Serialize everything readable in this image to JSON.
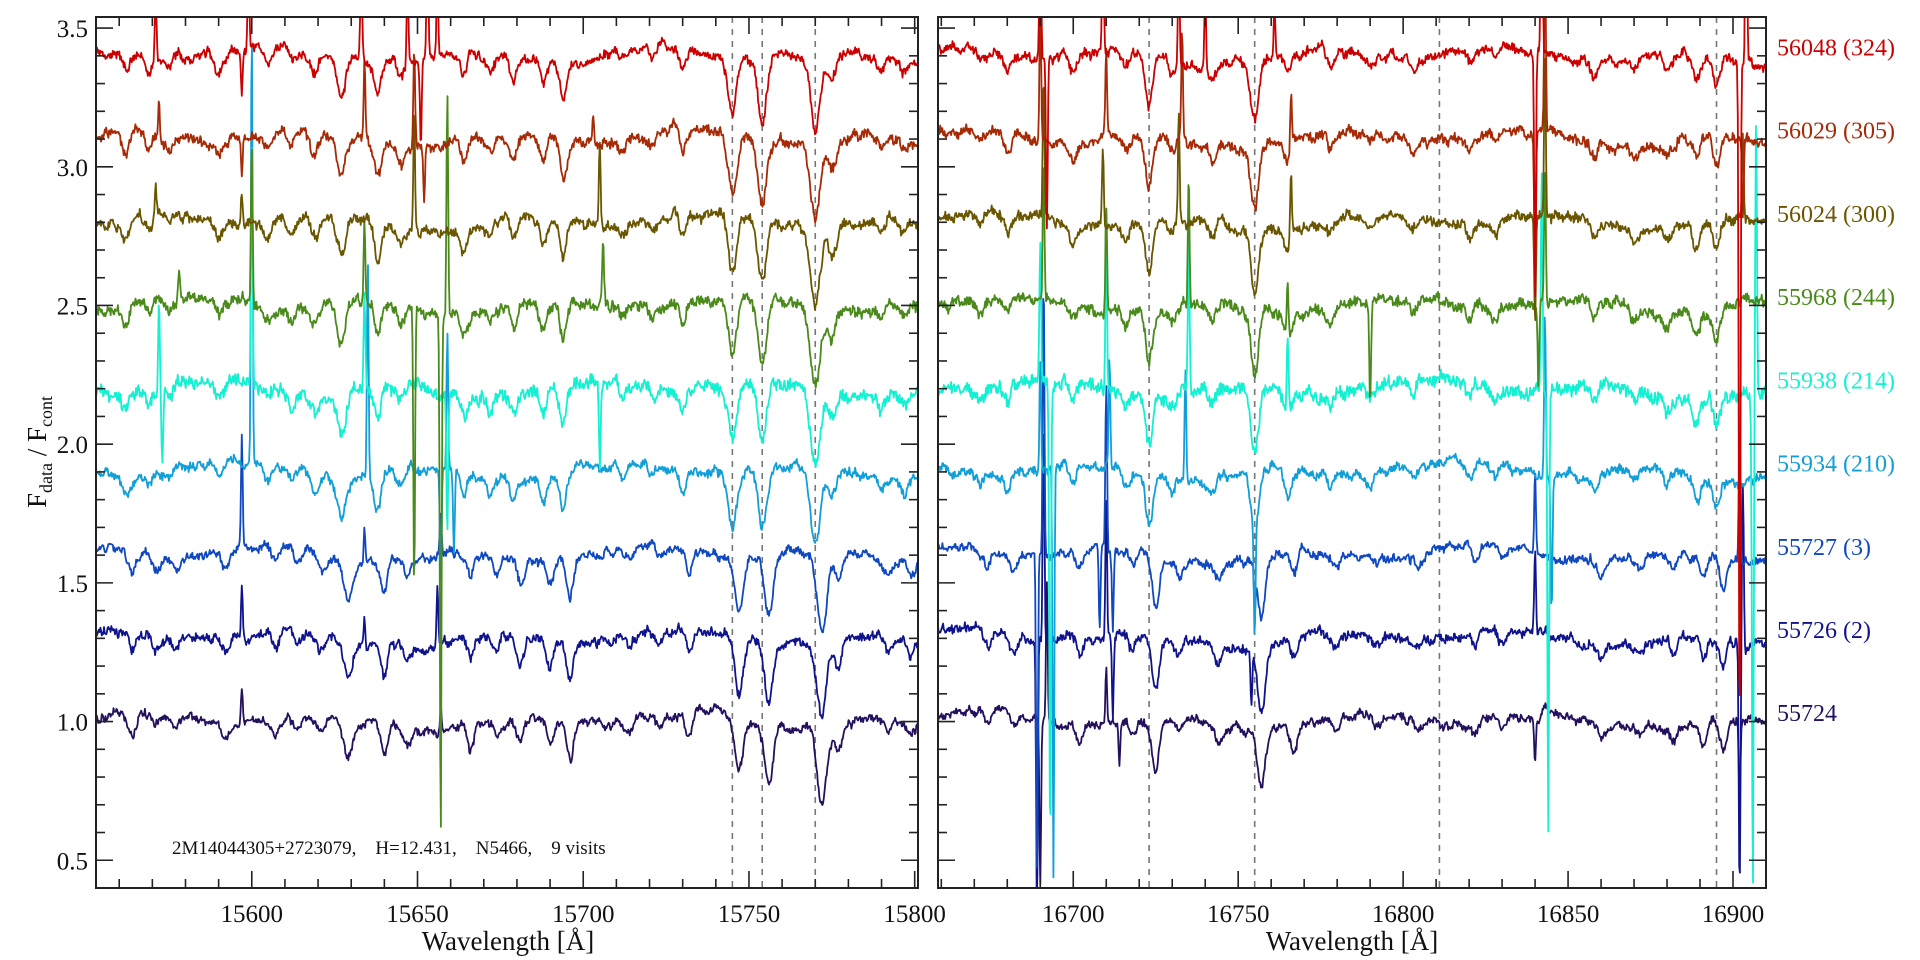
{
  "chart_data": [
    {
      "panel": "left",
      "type": "line",
      "xlim": [
        15553,
        15801
      ],
      "ylim": [
        0.4,
        3.54
      ],
      "xticks": [
        15600,
        15650,
        15700,
        15750,
        15800
      ],
      "yticks": [
        0.5,
        1.0,
        1.5,
        2.0,
        2.5,
        3.0,
        3.5
      ],
      "xlabel": "Wavelength [Å]",
      "ylabel": {
        "f1": "F",
        "sub1": "data",
        "sep": " / ",
        "f2": "F",
        "sub2": "cont"
      },
      "annotation": "2M14044305+2723079,    H=12.431,    N5466,    9 visits",
      "reference_lines": [
        15745,
        15754,
        15770
      ],
      "absorption_lines": [
        [
          15562,
          0.07,
          1.2
        ],
        [
          15569,
          0.05,
          1.0
        ],
        [
          15575,
          0.04,
          1.0
        ],
        [
          15590,
          0.06,
          1.2
        ],
        [
          15605,
          0.05,
          1.0
        ],
        [
          15612,
          0.05,
          1.0
        ],
        [
          15619,
          0.07,
          1.2
        ],
        [
          15627,
          0.14,
          1.3
        ],
        [
          15638,
          0.12,
          1.0
        ],
        [
          15645,
          0.06,
          1.0
        ],
        [
          15664,
          0.08,
          0.9
        ],
        [
          15672,
          0.05,
          0.9
        ],
        [
          15679,
          0.08,
          1.0
        ],
        [
          15688,
          0.09,
          1.0
        ],
        [
          15694,
          0.13,
          1.0
        ],
        [
          15712,
          0.04,
          1.0
        ],
        [
          15721,
          0.04,
          1.0
        ],
        [
          15730,
          0.08,
          0.9
        ],
        [
          15745,
          0.2,
          1.3
        ],
        [
          15754,
          0.22,
          1.3
        ],
        [
          15770,
          0.28,
          1.5
        ],
        [
          15775,
          0.1,
          1.2
        ],
        [
          15790,
          0.05,
          1.0
        ],
        [
          15797,
          0.04,
          1.0
        ]
      ],
      "spikes": {
        "56048": [
          [
            15571,
            0.25
          ],
          [
            15597,
            -0.15
          ],
          [
            15599,
            0.3
          ],
          [
            15633,
            0.4
          ],
          [
            15647,
            0.3
          ],
          [
            15651,
            -0.3
          ],
          [
            15653,
            0.5
          ],
          [
            15656,
            0.3
          ]
        ],
        "56029": [
          [
            15572,
            0.12
          ],
          [
            15597,
            -0.12
          ],
          [
            15634,
            0.3
          ],
          [
            15649,
            0.35
          ],
          [
            15652,
            -0.2
          ],
          [
            15703,
            0.1
          ]
        ],
        "56024": [
          [
            15571,
            0.12
          ],
          [
            15597,
            0.12
          ],
          [
            15649,
            0.42
          ],
          [
            15705,
            0.3
          ]
        ],
        "55968": [
          [
            15578,
            0.1
          ],
          [
            15600,
            0.6
          ],
          [
            15634,
            0.3
          ],
          [
            15649,
            -1.0
          ],
          [
            15657,
            -1.9
          ],
          [
            15659,
            0.8
          ],
          [
            15706,
            0.24
          ]
        ],
        "55938": [
          [
            15572,
            0.3
          ],
          [
            15573,
            -0.25
          ],
          [
            15600,
            0.9
          ],
          [
            15634,
            0.35
          ],
          [
            15659,
            -0.5
          ],
          [
            15705,
            -0.3
          ]
        ],
        "55934": [
          [
            15600,
            1.6
          ],
          [
            15635,
            0.8
          ],
          [
            15657,
            -0.4
          ],
          [
            15659,
            0.5
          ],
          [
            15661,
            -0.3
          ]
        ],
        "55727": [
          [
            15597,
            0.4
          ],
          [
            15634,
            0.12
          ],
          [
            15657,
            0.15
          ]
        ],
        "55726": [
          [
            15597,
            0.2
          ],
          [
            15634,
            0.1
          ],
          [
            15656,
            0.2
          ]
        ],
        "55724": [
          [
            15597,
            0.12
          ],
          [
            15657,
            0.1
          ]
        ]
      }
    },
    {
      "panel": "right",
      "type": "line",
      "xlim": [
        16659,
        16910
      ],
      "ylim": [
        0.4,
        3.54
      ],
      "xticks": [
        16700,
        16750,
        16800,
        16850,
        16900
      ],
      "yticks": [
        0.5,
        1.0,
        1.5,
        2.0,
        2.5,
        3.0,
        3.5
      ],
      "xlabel": "Wavelength [Å]",
      "reference_lines": [
        16723,
        16755,
        16811,
        16895
      ],
      "absorption_lines": [
        [
          16672,
          0.05,
          1.0
        ],
        [
          16680,
          0.06,
          1.0
        ],
        [
          16700,
          0.06,
          1.0
        ],
        [
          16716,
          0.05,
          1.0
        ],
        [
          16723,
          0.18,
          1.1
        ],
        [
          16730,
          0.05,
          1.0
        ],
        [
          16742,
          0.05,
          1.0
        ],
        [
          16755,
          0.22,
          1.2
        ],
        [
          16765,
          0.08,
          1.0
        ],
        [
          16778,
          0.05,
          1.0
        ],
        [
          16790,
          0.04,
          1.0
        ],
        [
          16803,
          0.04,
          1.0
        ],
        [
          16820,
          0.05,
          1.0
        ],
        [
          16828,
          0.04,
          1.0
        ],
        [
          16858,
          0.05,
          1.0
        ],
        [
          16870,
          0.04,
          1.0
        ],
        [
          16880,
          0.05,
          1.0
        ],
        [
          16889,
          0.08,
          1.0
        ],
        [
          16895,
          0.1,
          1.0
        ]
      ],
      "spikes": {
        "56048": [
          [
            16690,
            0.6
          ],
          [
            16692,
            -0.6
          ],
          [
            16709,
            0.5
          ],
          [
            16732,
            0.4
          ],
          [
            16740,
            0.3
          ],
          [
            16761,
            0.2
          ],
          [
            16840,
            -0.9
          ],
          [
            16842,
            0.9
          ],
          [
            16902,
            -2.5
          ],
          [
            16904,
            0.9
          ]
        ],
        "56029": [
          [
            16690,
            0.5
          ],
          [
            16710,
            0.3
          ],
          [
            16733,
            0.4
          ],
          [
            16766,
            0.2
          ],
          [
            16840,
            -0.6
          ],
          [
            16843,
            0.7
          ],
          [
            16903,
            -0.3
          ]
        ],
        "56024": [
          [
            16691,
            0.5
          ],
          [
            16709,
            0.3
          ],
          [
            16732,
            0.4
          ],
          [
            16766,
            0.25
          ],
          [
            16840,
            -0.4
          ],
          [
            16843,
            0.6
          ],
          [
            16903,
            0.3
          ]
        ],
        "55968": [
          [
            16691,
            0.5
          ],
          [
            16710,
            0.4
          ],
          [
            16735,
            0.5
          ],
          [
            16765,
            0.2
          ],
          [
            16790,
            -0.35
          ],
          [
            16841,
            -0.3
          ],
          [
            16843,
            0.5
          ]
        ],
        "55938": [
          [
            16690,
            0.5
          ],
          [
            16693,
            -1.7
          ],
          [
            16710,
            0.5
          ],
          [
            16735,
            0.6
          ],
          [
            16765,
            0.3
          ],
          [
            16842,
            0.8
          ],
          [
            16844,
            -1.6
          ],
          [
            16906,
            -1.8
          ],
          [
            16907,
            1.0
          ]
        ],
        "55934": [
          [
            16690,
            0.4
          ],
          [
            16694,
            -1.5
          ],
          [
            16711,
            0.4
          ],
          [
            16734,
            0.4
          ],
          [
            16755,
            -0.4
          ],
          [
            16843,
            0.6
          ],
          [
            16845,
            -0.5
          ]
        ],
        "55727": [
          [
            16689,
            -1.2
          ],
          [
            16691,
            1.0
          ],
          [
            16708,
            -0.3
          ],
          [
            16710,
            0.6
          ],
          [
            16712,
            -0.3
          ],
          [
            16755,
            -0.15
          ],
          [
            16840,
            0.3
          ],
          [
            16902,
            0.5
          ]
        ],
        "55726": [
          [
            16689,
            -1.0
          ],
          [
            16691,
            0.8
          ],
          [
            16710,
            0.5
          ],
          [
            16712,
            -0.3
          ],
          [
            16754,
            -0.2
          ],
          [
            16840,
            0.3
          ],
          [
            16902,
            -0.9
          ],
          [
            16903,
            0.6
          ]
        ],
        "55724": [
          [
            16690,
            -0.6
          ],
          [
            16692,
            0.5
          ],
          [
            16710,
            0.2
          ],
          [
            16714,
            -0.15
          ],
          [
            16840,
            -0.15
          ],
          [
            16902,
            -0.3
          ]
        ]
      }
    }
  ],
  "series": [
    {
      "id": "56048",
      "label": "56048 (324)",
      "offset": 3.4,
      "color": "#cc0000",
      "noise": 0.012,
      "shift": 0.0
    },
    {
      "id": "56029",
      "label": "56029 (305)",
      "offset": 3.1,
      "color": "#a62a05",
      "noise": 0.014,
      "shift": 0.0
    },
    {
      "id": "56024",
      "label": "56024 (300)",
      "offset": 2.8,
      "color": "#6b5600",
      "noise": 0.014,
      "shift": 0.0
    },
    {
      "id": "55968",
      "label": "55968 (244)",
      "offset": 2.5,
      "color": "#4a8a1a",
      "noise": 0.015,
      "shift": 0.0
    },
    {
      "id": "55938",
      "label": "55938 (214)",
      "offset": 2.2,
      "color": "#14f0d2",
      "noise": 0.02,
      "shift": 0.0
    },
    {
      "id": "55934",
      "label": "55934 (210)",
      "offset": 1.9,
      "color": "#129fd8",
      "noise": 0.012,
      "shift": 0.0
    },
    {
      "id": "55727",
      "label": "55727 (3)",
      "offset": 1.6,
      "color": "#1048c0",
      "noise": 0.01,
      "shift": 2.0
    },
    {
      "id": "55726",
      "label": "55726 (2)",
      "offset": 1.3,
      "color": "#10148c",
      "noise": 0.012,
      "shift": 2.0
    },
    {
      "id": "55724",
      "label": "55724",
      "offset": 1.0,
      "color": "#25105e",
      "noise": 0.01,
      "shift": 2.0
    }
  ]
}
